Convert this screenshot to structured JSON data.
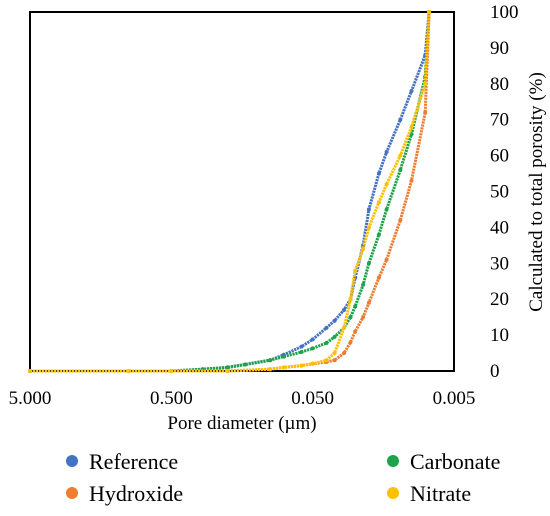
{
  "chart_data": {
    "type": "line",
    "title": "",
    "xlabel": "Pore diameter (µm)",
    "ylabel": "Calculated to total porosity (%)",
    "x_scale": "log-reversed",
    "xlim": [
      5,
      0.005
    ],
    "ylim": [
      0,
      100
    ],
    "x_ticks": [
      "5.000",
      "0.500",
      "0.050",
      "0.005"
    ],
    "y_ticks": [
      "0",
      "10",
      "20",
      "30",
      "40",
      "50",
      "60",
      "70",
      "80",
      "90",
      "100"
    ],
    "grid": false,
    "legend_position": "bottom",
    "series": [
      {
        "name": "Reference",
        "color": "#4472C4",
        "x": [
          5,
          1.0,
          0.5,
          0.3,
          0.2,
          0.15,
          0.1,
          0.08,
          0.06,
          0.05,
          0.04,
          0.035,
          0.03,
          0.027,
          0.025,
          0.022,
          0.02,
          0.017,
          0.015,
          0.012,
          0.01,
          0.008,
          0.0075
        ],
        "y": [
          0,
          0,
          0,
          0.5,
          1,
          1.8,
          3,
          4.5,
          6.8,
          8.8,
          12,
          14,
          17,
          20,
          26,
          35,
          45,
          55,
          61,
          70,
          78,
          88,
          100
        ]
      },
      {
        "name": "Carbonate",
        "color": "#1DA34A",
        "x": [
          5,
          1.0,
          0.5,
          0.3,
          0.2,
          0.15,
          0.1,
          0.08,
          0.06,
          0.05,
          0.04,
          0.035,
          0.03,
          0.027,
          0.025,
          0.022,
          0.02,
          0.017,
          0.015,
          0.012,
          0.01,
          0.008,
          0.0075
        ],
        "y": [
          0,
          0,
          0,
          0.5,
          1,
          1.8,
          3,
          4,
          5.3,
          6.3,
          7.8,
          9.5,
          12,
          15,
          18,
          24,
          30,
          38,
          45,
          56,
          66,
          82,
          100
        ]
      },
      {
        "name": "Hydroxide",
        "color": "#ED7D31",
        "x": [
          5,
          1.0,
          0.5,
          0.2,
          0.1,
          0.08,
          0.06,
          0.05,
          0.04,
          0.035,
          0.03,
          0.027,
          0.025,
          0.022,
          0.02,
          0.017,
          0.015,
          0.012,
          0.01,
          0.008,
          0.0075
        ],
        "y": [
          0,
          0,
          0,
          0,
          0.5,
          1,
          1.5,
          2,
          2.5,
          3,
          5,
          8,
          11,
          15,
          19,
          26,
          31,
          42,
          53,
          72,
          100
        ]
      },
      {
        "name": "Nitrate",
        "color": "#FFC000",
        "x": [
          5,
          1.0,
          0.5,
          0.2,
          0.1,
          0.08,
          0.06,
          0.05,
          0.04,
          0.035,
          0.03,
          0.027,
          0.025,
          0.022,
          0.02,
          0.017,
          0.015,
          0.012,
          0.01,
          0.008,
          0.0075
        ],
        "y": [
          0,
          0,
          0,
          0,
          0.5,
          1,
          1.5,
          2,
          3,
          5,
          12,
          20,
          28,
          34,
          40,
          47,
          52,
          60,
          68,
          80,
          100
        ]
      }
    ],
    "legend": [
      {
        "name": "Reference",
        "color": "#4472C4"
      },
      {
        "name": "Carbonate",
        "color": "#1DA34A"
      },
      {
        "name": "Hydroxide",
        "color": "#ED7D31"
      },
      {
        "name": "Nitrate",
        "color": "#FFC000"
      }
    ]
  }
}
